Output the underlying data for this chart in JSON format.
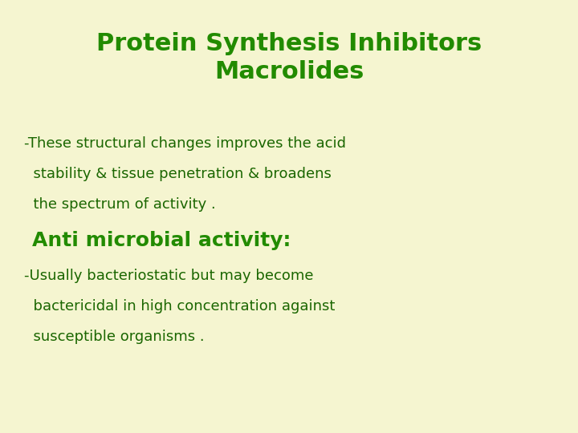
{
  "background_color": "#f5f5d0",
  "title_line1": "Protein Synthesis Inhibitors",
  "title_line2": "Macrolides",
  "title_color": "#228B00",
  "title_fontsize": 22,
  "body_color": "#1a6600",
  "body_fontsize": 13,
  "highlight_color": "#228B00",
  "highlight_fontsize": 18,
  "line1": "-These structural changes improves the acid",
  "line2": "  stability & tissue penetration & broadens",
  "line3": "  the spectrum of activity .",
  "line4": "Anti microbial activity:",
  "line5": "-Usually bacteriostatic but may become",
  "line6": "  bactericidal in high concentration against",
  "line7": "  susceptible organisms ."
}
